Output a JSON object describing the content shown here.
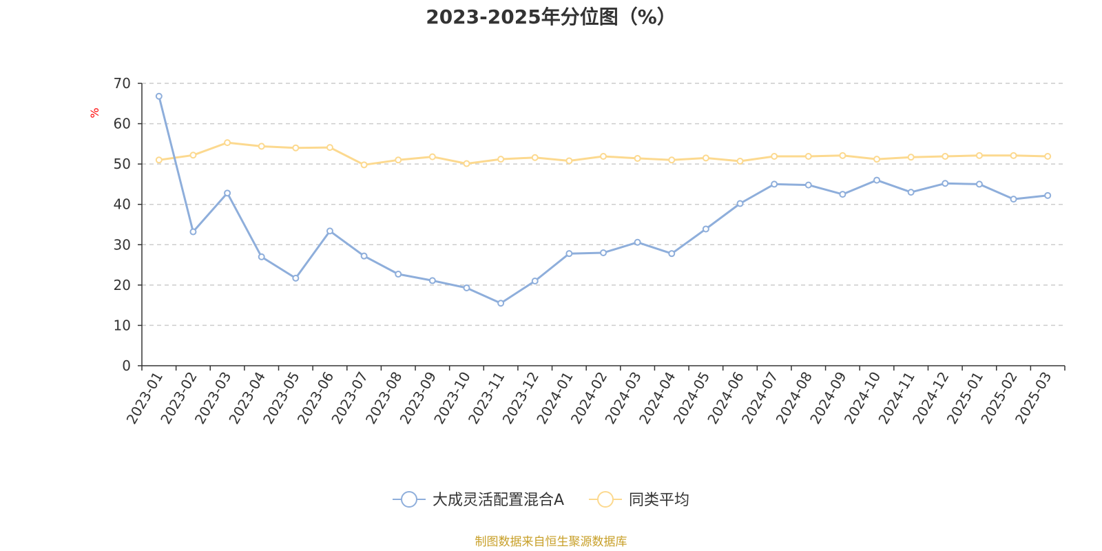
{
  "chart_data": {
    "type": "line",
    "title": "2023-2025年分位图（%）",
    "ylabel": "%",
    "xlabel": "",
    "ylim": [
      0,
      70
    ],
    "yticks": [
      0,
      10,
      20,
      30,
      40,
      50,
      60,
      70
    ],
    "grid": true,
    "legend_position": "bottom",
    "categories": [
      "2023-01",
      "2023-02",
      "2023-03",
      "2023-04",
      "2023-05",
      "2023-06",
      "2023-07",
      "2023-08",
      "2023-09",
      "2023-10",
      "2023-11",
      "2023-12",
      "2024-01",
      "2024-02",
      "2024-03",
      "2024-04",
      "2024-05",
      "2024-06",
      "2024-07",
      "2024-08",
      "2024-09",
      "2024-10",
      "2024-11",
      "2024-12",
      "2025-01",
      "2025-02",
      "2025-03"
    ],
    "series": [
      {
        "name": "大成灵活配置混合A",
        "color": "#8eaedb",
        "values": [
          66.8,
          33.2,
          42.8,
          27.0,
          21.7,
          33.4,
          27.2,
          22.7,
          21.1,
          19.3,
          15.5,
          21.0,
          27.8,
          28.0,
          30.6,
          27.8,
          33.9,
          40.2,
          45.0,
          44.8,
          42.5,
          46.0,
          43.0,
          45.2,
          45.0,
          41.3,
          42.2
        ]
      },
      {
        "name": "同类平均",
        "color": "#fcd98f",
        "values": [
          51.0,
          52.2,
          55.3,
          54.4,
          54.0,
          54.1,
          49.8,
          51.0,
          51.8,
          50.1,
          51.2,
          51.6,
          50.8,
          51.9,
          51.4,
          51.0,
          51.5,
          50.7,
          51.9,
          51.9,
          52.1,
          51.2,
          51.7,
          51.9,
          52.1,
          52.1,
          51.9
        ]
      }
    ]
  },
  "footer": {
    "source": "制图数据来自恒生聚源数据库"
  }
}
